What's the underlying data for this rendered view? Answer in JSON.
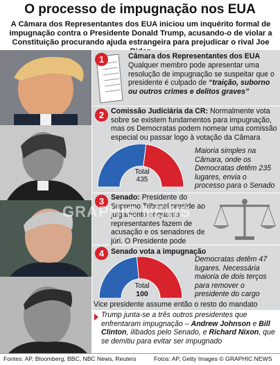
{
  "title": "O processo de impugnação nos EUA",
  "intro": "A Câmara dos Representantes dos EUA iniciou um inquérito formal de impugnação contra o Presidente Donald Trump, acusando-o de violar a Constituição procurando ajuda estrangeira para prejudicar o rival Joe Biden",
  "steps": [
    {
      "num": "1",
      "heading": "Câmara dos Representantes dos EUA",
      "text_a": "Qualquer membro pode apresentar uma resolução de impugnação se suspeitar que o presidente é culpado de ",
      "text_b": "“traição, suborno ou outros crimes e delitos graves”"
    },
    {
      "num": "2",
      "heading": "Comissão Judiciária da CR:",
      "text": " Normalmente vota sobre se existem fundamentos para impugnação, mas os Democratas podem nomear uma comissão especial ou passar logo à votação da Câmara",
      "chart_note": "Maioria simples na Câmara, onde os Democratas detêm 235 lugares, envia o processo para o Senado",
      "total_label": "Total",
      "total_value": "435"
    },
    {
      "num": "3",
      "heading": "Senado:",
      "text": " Presidente do Supremo Tribunal preside ao julgamento enquanto representantes fazem de acusação e os senadores de júri. O Presidente pode nomear advogados"
    },
    {
      "num": "4",
      "heading": "Senado vota a impugnação",
      "chart_note": "Democratas detêm 47 lugares. Necessária maioria de dois terços para remover o presidente do cargo",
      "total_label": "Total",
      "total_value": "100",
      "after": "Vice presidente assume então o resto do mandato"
    }
  ],
  "note": {
    "a": "Trump junta-se a três outros presidentes que enfrentaram impugnação – ",
    "b1": "Andrew Johnson",
    "c1": " e ",
    "b2": "Bill Clinton",
    "c2": ", ilibados pelo Senado, e ",
    "b3": "Richard Nixon",
    "c3": ", que se demitiu para evitar ser impugnado"
  },
  "watermark": "GRAPHIC NEWS",
  "source": "Fontes: AP, Bloomberg, BBC, NBC News, Reuters",
  "credit": "Fotos: AP, Getty Images   © GRAPHIC NEWS",
  "colors": {
    "red": "#d8222c",
    "blue": "#2b63b5",
    "panel": "#d9dadb"
  },
  "chart_data": [
    {
      "type": "pie",
      "subtype": "semicircle-parliament",
      "title": "",
      "total": 435,
      "series": [
        {
          "values": [
            235,
            200
          ]
        }
      ]
    },
    {
      "type": "pie",
      "subtype": "semicircle-parliament",
      "title": "",
      "total": 100,
      "series": [
        {
          "values": [
            47,
            53
          ]
        }
      ]
    }
  ]
}
